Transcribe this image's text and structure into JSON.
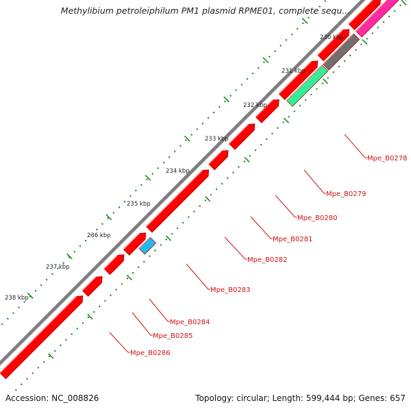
{
  "title": "Methylibium petroleiphilum PM1 plasmid RPME01, complete sequ...",
  "footer": {
    "accession": "Accession: NC_008826",
    "summary": "Topology: circular; Length: 599,444 bp; Genes: 657"
  },
  "colors": {
    "backbone": "#7f7f7f",
    "gene_default": "#ff0000",
    "gene_dark": "#b00000",
    "gene_gray": "#707070",
    "gene_green": "#33ee99",
    "gene_pink": "#ff2aa5",
    "gene_cyan": "#22bbee",
    "tick": "#1a8a1a",
    "label": "#cc1111"
  },
  "kbp_ticks": [
    {
      "label": "230 kbp"
    },
    {
      "label": "231 kbp"
    },
    {
      "label": "232 kbp"
    },
    {
      "label": "233 kbp"
    },
    {
      "label": "234 kbp"
    },
    {
      "label": "235 kbp"
    },
    {
      "label": "236 kbp"
    },
    {
      "label": "237 kbp"
    },
    {
      "label": "238 kbp"
    }
  ],
  "gene_labels": [
    {
      "name": "Mpe_B0278"
    },
    {
      "name": "Mpe_B0279"
    },
    {
      "name": "Mpe_B0280"
    },
    {
      "name": "Mpe_B0281"
    },
    {
      "name": "Mpe_B0282"
    },
    {
      "name": "Mpe_B0283"
    },
    {
      "name": "Mpe_B0284"
    },
    {
      "name": "Mpe_B0285"
    },
    {
      "name": "Mpe_B0286"
    }
  ]
}
